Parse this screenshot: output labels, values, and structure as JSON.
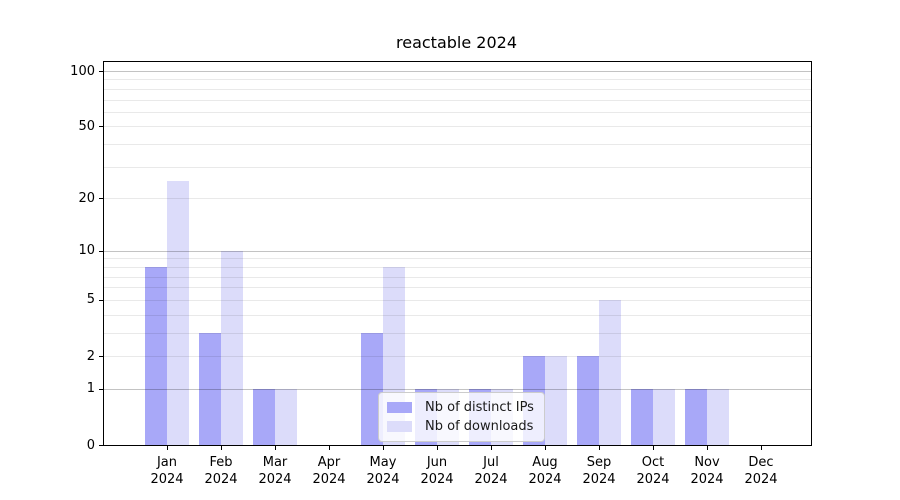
{
  "title": "reactable 2024",
  "chart_data": {
    "type": "bar",
    "title": "reactable 2024",
    "categories": [
      "Jan 2024",
      "Feb 2024",
      "Mar 2024",
      "Apr 2024",
      "May 2024",
      "Jun 2024",
      "Jul 2024",
      "Aug 2024",
      "Sep 2024",
      "Oct 2024",
      "Nov 2024",
      "Dec 2024"
    ],
    "series": [
      {
        "name": "Nb of distinct IPs",
        "values": [
          8,
          3,
          1,
          0,
          3,
          1,
          1,
          2,
          2,
          1,
          1,
          0
        ],
        "color": "#a8a8f8"
      },
      {
        "name": "Nb of downloads",
        "values": [
          25,
          10,
          1,
          0,
          8,
          1,
          1,
          2,
          5,
          1,
          1,
          0
        ],
        "color": "#dcdcfa"
      }
    ],
    "yscale": "log1p",
    "ylim": [
      0,
      100
    ],
    "yticks": [
      0,
      1,
      2,
      5,
      10,
      20,
      50,
      100
    ],
    "major_gridlines": [
      1,
      10,
      100
    ],
    "minor_gridlines": [
      2,
      3,
      4,
      5,
      6,
      7,
      8,
      9,
      20,
      30,
      40,
      50,
      60,
      70,
      80,
      90
    ],
    "grid": "horizontal",
    "legend": {
      "position": "inside-bottom-center",
      "entries": [
        "Nb of distinct IPs",
        "Nb of downloads"
      ]
    }
  },
  "colors": {
    "bar_distinct_ips": "#a8a8f8",
    "bar_downloads": "#dcdcfa",
    "major_grid": "#c7c7c7",
    "minor_grid": "#ebebeb",
    "spine": "#000000",
    "legend_border": "#cccccc"
  }
}
